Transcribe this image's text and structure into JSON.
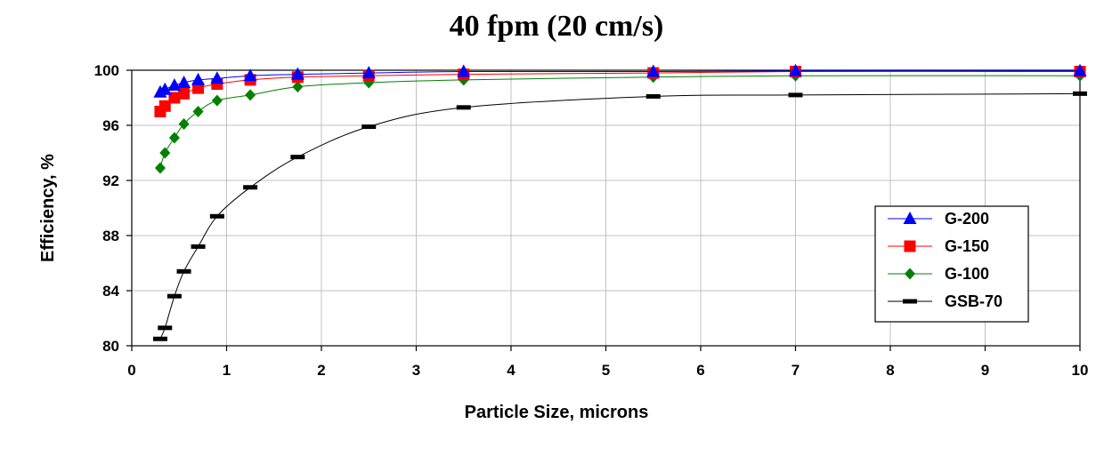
{
  "chart_data": {
    "type": "line",
    "title": "40 fpm (20 cm/s)",
    "xlabel": "Particle Size, microns",
    "ylabel": "Efficiency, %",
    "xlim": [
      0,
      10
    ],
    "ylim": [
      80,
      100
    ],
    "xticks": [
      0,
      1,
      2,
      3,
      4,
      5,
      6,
      7,
      8,
      9,
      10
    ],
    "yticks": [
      80,
      84,
      88,
      92,
      96,
      100
    ],
    "grid": true,
    "legend": "right",
    "series": [
      {
        "name": "G-200",
        "color": "#0000ff",
        "marker": "triangle",
        "x": [
          0.3,
          0.35,
          0.45,
          0.55,
          0.7,
          0.9,
          1.25,
          1.75,
          2.5,
          3.5,
          5.5,
          7.0,
          10.0
        ],
        "y": [
          98.4,
          98.6,
          98.9,
          99.1,
          99.3,
          99.4,
          99.6,
          99.7,
          99.8,
          99.9,
          99.9,
          99.95,
          99.95
        ]
      },
      {
        "name": "G-150",
        "color": "#ff0000",
        "marker": "square",
        "x": [
          0.3,
          0.35,
          0.45,
          0.55,
          0.7,
          0.9,
          1.25,
          1.75,
          2.5,
          3.5,
          5.5,
          7.0,
          10.0
        ],
        "y": [
          97.0,
          97.4,
          98.0,
          98.3,
          98.7,
          99.0,
          99.3,
          99.5,
          99.6,
          99.7,
          99.8,
          99.9,
          99.9
        ]
      },
      {
        "name": "G-100",
        "color": "#008000",
        "marker": "diamond",
        "x": [
          0.3,
          0.35,
          0.45,
          0.55,
          0.7,
          0.9,
          1.25,
          1.75,
          2.5,
          3.5,
          5.5,
          7.0,
          10.0
        ],
        "y": [
          92.9,
          94.0,
          95.1,
          96.1,
          97.0,
          97.8,
          98.2,
          98.8,
          99.1,
          99.3,
          99.5,
          99.6,
          99.6
        ]
      },
      {
        "name": "GSB-70",
        "color": "#000000",
        "marker": "dash",
        "x": [
          0.3,
          0.35,
          0.45,
          0.55,
          0.7,
          0.9,
          1.25,
          1.75,
          2.5,
          3.5,
          5.5,
          7.0,
          10.0
        ],
        "y": [
          80.5,
          81.3,
          83.6,
          85.4,
          87.2,
          89.4,
          91.5,
          93.7,
          95.9,
          97.3,
          98.1,
          98.2,
          98.3
        ]
      }
    ]
  }
}
